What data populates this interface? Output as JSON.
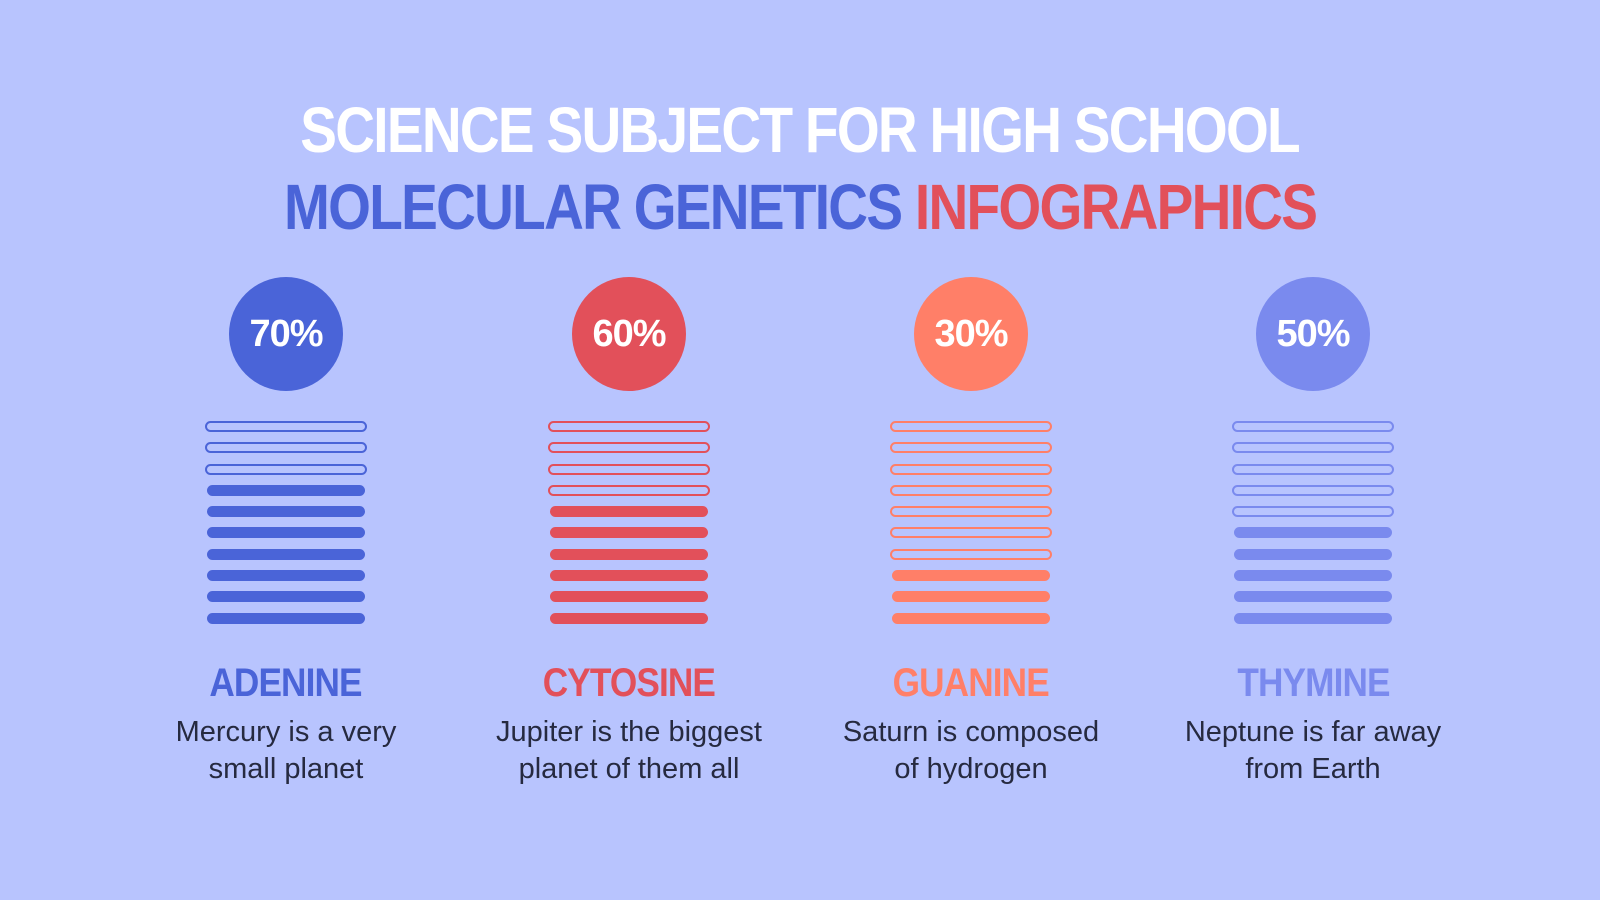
{
  "title": {
    "line1": "SCIENCE SUBJECT FOR HIGH SCHOOL",
    "line2_part1": "MOLECULAR GENETICS",
    "line2_part2": "INFOGRAPHICS"
  },
  "colors": {
    "background": "#B8C4FE",
    "title_line1": "#FFFFFF",
    "title_blue": "#4A64D8",
    "title_red": "#E2505A",
    "adenine": "#4A64D8",
    "cytosine": "#E2505A",
    "guanine": "#FF7F68",
    "thymine": "#7A8AEE",
    "description_text": "#262A40"
  },
  "items": [
    {
      "percent": "70%",
      "name": "ADENINE",
      "description_line1": "Mercury is a very",
      "description_line2": "small planet",
      "color": "#4A64D8"
    },
    {
      "percent": "60%",
      "name": "CYTOSINE",
      "description_line1": "Jupiter is the biggest",
      "description_line2": "planet of them all",
      "color": "#E2505A"
    },
    {
      "percent": "30%",
      "name": "GUANINE",
      "description_line1": "Saturn is composed",
      "description_line2": "of hydrogen",
      "color": "#FF7F68"
    },
    {
      "percent": "50%",
      "name": "THYMINE",
      "description_line1": "Neptune is far away",
      "description_line2": "from Earth",
      "color": "#7A8AEE"
    }
  ],
  "chart_data": {
    "type": "bar",
    "title": "SCIENCE SUBJECT FOR HIGH SCHOOL MOLECULAR GENETICS INFOGRAPHICS",
    "categories": [
      "ADENINE",
      "CYTOSINE",
      "GUANINE",
      "THYMINE"
    ],
    "values": [
      70,
      60,
      30,
      50
    ],
    "unit": "%",
    "segments_total": 10,
    "segments_filled": [
      7,
      6,
      3,
      5
    ],
    "descriptions": [
      "Mercury is a very small planet",
      "Jupiter is the biggest planet of them all",
      "Saturn is composed of hydrogen",
      "Neptune is far away from Earth"
    ],
    "colors": [
      "#4A64D8",
      "#E2505A",
      "#FF7F68",
      "#7A8AEE"
    ],
    "xlabel": "",
    "ylabel": "",
    "ylim": [
      0,
      100
    ],
    "grid": false,
    "legend": "none"
  }
}
